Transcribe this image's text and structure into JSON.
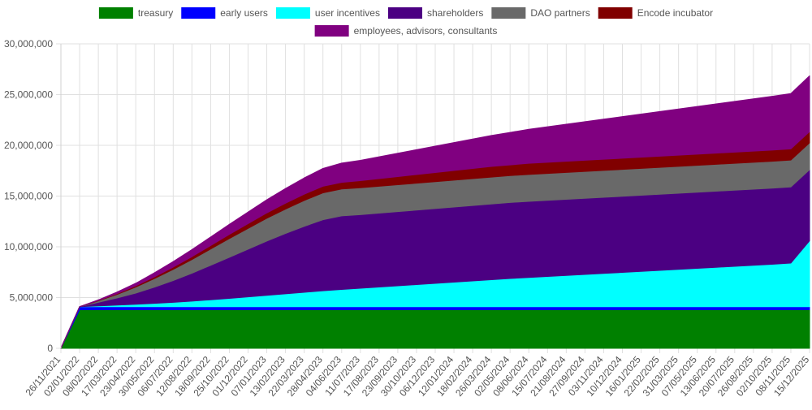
{
  "chart_data": {
    "type": "area",
    "stacked": true,
    "grid": true,
    "legend_position": "top",
    "x": [
      "26/11/2021",
      "02/01/2022",
      "08/02/2022",
      "17/03/2022",
      "23/04/2022",
      "30/05/2022",
      "06/07/2022",
      "12/08/2022",
      "18/09/2022",
      "25/10/2022",
      "01/12/2022",
      "07/01/2023",
      "13/02/2023",
      "22/03/2023",
      "28/04/2023",
      "04/06/2023",
      "11/07/2023",
      "17/08/2023",
      "23/09/2023",
      "30/10/2023",
      "06/12/2023",
      "12/01/2024",
      "18/02/2024",
      "26/03/2024",
      "02/05/2024",
      "08/06/2024",
      "15/07/2024",
      "21/08/2024",
      "27/09/2024",
      "03/11/2024",
      "10/12/2024",
      "16/01/2025",
      "22/02/2025",
      "31/03/2025",
      "07/05/2025",
      "13/06/2025",
      "20/07/2025",
      "26/08/2025",
      "02/10/2025",
      "08/11/2025",
      "15/12/2025"
    ],
    "ylim": [
      0,
      30000000
    ],
    "yticks": [
      "0",
      "5,000,000",
      "10,000,000",
      "15,000,000",
      "20,000,000",
      "25,000,000",
      "30,000,000"
    ],
    "series": [
      {
        "name": "treasury",
        "color": "#008000",
        "values": [
          0,
          3800000,
          3800000,
          3800000,
          3800000,
          3800000,
          3800000,
          3800000,
          3800000,
          3800000,
          3800000,
          3800000,
          3800000,
          3800000,
          3800000,
          3800000,
          3800000,
          3800000,
          3800000,
          3800000,
          3800000,
          3800000,
          3800000,
          3800000,
          3800000,
          3800000,
          3800000,
          3800000,
          3800000,
          3800000,
          3800000,
          3800000,
          3800000,
          3800000,
          3800000,
          3800000,
          3800000,
          3800000,
          3800000,
          3800000,
          3800000
        ]
      },
      {
        "name": "early users",
        "color": "#0000ff",
        "values": [
          0,
          300000,
          300000,
          300000,
          300000,
          300000,
          300000,
          300000,
          300000,
          300000,
          300000,
          300000,
          300000,
          300000,
          300000,
          300000,
          300000,
          300000,
          300000,
          300000,
          300000,
          300000,
          300000,
          300000,
          300000,
          300000,
          300000,
          300000,
          300000,
          300000,
          300000,
          300000,
          300000,
          300000,
          300000,
          300000,
          300000,
          300000,
          300000,
          300000,
          300000
        ]
      },
      {
        "name": "user incentives",
        "color": "#00ffff",
        "values": [
          0,
          0,
          80000,
          160000,
          240000,
          330000,
          430000,
          550000,
          680000,
          820000,
          970000,
          1120000,
          1270000,
          1420000,
          1570000,
          1700000,
          1820000,
          1940000,
          2060000,
          2180000,
          2300000,
          2420000,
          2540000,
          2660000,
          2780000,
          2880000,
          2980000,
          3080000,
          3180000,
          3280000,
          3380000,
          3480000,
          3580000,
          3680000,
          3780000,
          3880000,
          3980000,
          4080000,
          4180000,
          4300000,
          6500000
        ]
      },
      {
        "name": "shareholders",
        "color": "#4b0082",
        "values": [
          0,
          0,
          350000,
          700000,
          1100000,
          1600000,
          2150000,
          2750000,
          3400000,
          4050000,
          4700000,
          5350000,
          5950000,
          6500000,
          7000000,
          7250000,
          7250000,
          7280000,
          7310000,
          7340000,
          7370000,
          7400000,
          7430000,
          7460000,
          7490000,
          7500000,
          7500000,
          7500000,
          7500000,
          7500000,
          7500000,
          7500000,
          7500000,
          7500000,
          7500000,
          7500000,
          7500000,
          7500000,
          7500000,
          7500000,
          7000000
        ]
      },
      {
        "name": "DAO partners",
        "color": "#696969",
        "values": [
          0,
          0,
          150000,
          350000,
          600000,
          850000,
          1100000,
          1350000,
          1600000,
          1850000,
          2050000,
          2250000,
          2400000,
          2550000,
          2650000,
          2650000,
          2650000,
          2650000,
          2650000,
          2650000,
          2650000,
          2650000,
          2650000,
          2650000,
          2650000,
          2650000,
          2650000,
          2650000,
          2650000,
          2650000,
          2650000,
          2650000,
          2650000,
          2650000,
          2650000,
          2650000,
          2650000,
          2650000,
          2650000,
          2650000,
          2650000
        ]
      },
      {
        "name": "Encode incubator",
        "color": "#800000",
        "values": [
          0,
          0,
          40000,
          80000,
          120000,
          170000,
          220000,
          280000,
          340000,
          400000,
          460000,
          520000,
          580000,
          620000,
          650000,
          650000,
          700000,
          750000,
          800000,
          850000,
          900000,
          950000,
          1000000,
          1050000,
          1050000,
          1100000,
          1100000,
          1100000,
          1100000,
          1100000,
          1100000,
          1100000,
          1100000,
          1100000,
          1100000,
          1100000,
          1100000,
          1100000,
          1100000,
          1100000,
          1100000
        ]
      },
      {
        "name": "employees, advisors, consultants",
        "color": "#800080",
        "values": [
          0,
          0,
          50000,
          150000,
          250000,
          400000,
          550000,
          700000,
          850000,
          1000000,
          1150000,
          1300000,
          1450000,
          1600000,
          1750000,
          1900000,
          2000000,
          2150000,
          2300000,
          2450000,
          2600000,
          2750000,
          2900000,
          3050000,
          3200000,
          3350000,
          3500000,
          3650000,
          3800000,
          3950000,
          4100000,
          4250000,
          4400000,
          4550000,
          4700000,
          4850000,
          5000000,
          5150000,
          5300000,
          5450000,
          5500000
        ]
      }
    ]
  }
}
